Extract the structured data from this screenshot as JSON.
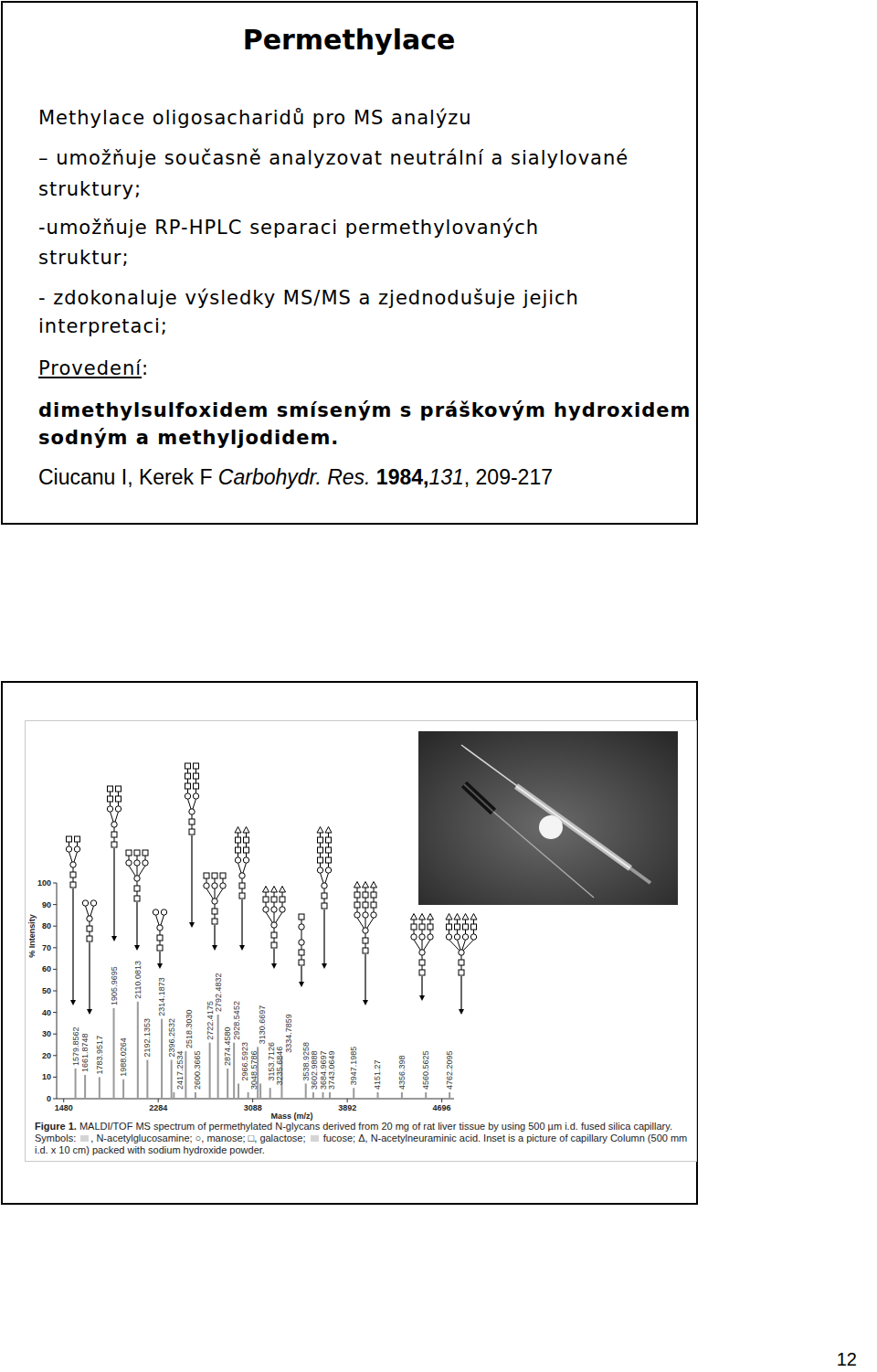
{
  "slide": {
    "title": "Permethylace",
    "items": [
      {
        "lines": [
          "Methylace oligosacharidů pro MS analýzu"
        ]
      },
      {
        "lines": [
          "– umožňuje současně analyzovat neutrální a sialylované",
          "struktury;"
        ]
      },
      {
        "lines": [
          "-umožňuje RP-HPLC separaci permethylovaných",
          "struktur;"
        ]
      },
      {
        "lines": [
          "- zdokonaluje výsledky MS/MS a zjednodušuje jejich",
          "interpretaci;"
        ]
      },
      {
        "parts": [
          {
            "text": "Provedení",
            "style": "underline"
          },
          {
            "text": ":",
            "style": "normal"
          }
        ]
      },
      {
        "lines": [
          "dimethylsulfoxidem smíseným s práškovým hydroxidem",
          "sodným a methyljodidem."
        ],
        "style": "bold"
      }
    ],
    "citation": [
      {
        "text": "Ciucanu I, Kerek F ",
        "style": "normal"
      },
      {
        "text": "Carbohydr. Res.",
        "style": "italic"
      },
      {
        "text": " ",
        "style": "normal"
      },
      {
        "text": "1984",
        "style": "bold"
      },
      {
        "text": ",",
        "style": "bold"
      },
      {
        "text": "131",
        "style": "italic"
      },
      {
        "text": ", 209-217",
        "style": "normal"
      }
    ]
  },
  "chart_data": {
    "type": "bar",
    "xlabel": "Mass (m/z)",
    "ylabel": "% Intensity",
    "x": [
      1579.8562,
      1661.8748,
      1783.9517,
      1905.9695,
      1988.0264,
      2110.0813,
      2192.1353,
      2314.1873,
      2396.2532,
      2417.2534,
      2518.303,
      2600.3665,
      2722.4175,
      2792.4832,
      2874.458,
      2928.5452,
      2966.5923,
      3048.5786,
      3130.6697,
      3153.7126,
      3235.6846,
      3334.7859,
      3538.9258,
      3602.9888,
      3684.9697,
      3743.0649,
      3947.1985,
      4151.27,
      4356.398,
      4560.5625,
      4762.2095
    ],
    "values": [
      14,
      11,
      10,
      42,
      9,
      45,
      18,
      37,
      18,
      3,
      22,
      3,
      26,
      39,
      14,
      26,
      7,
      3,
      24,
      7,
      5,
      20,
      7,
      3,
      3,
      3,
      5,
      3,
      3,
      3,
      3
    ],
    "peak_labels": [
      "1579.8562",
      "1661.8748",
      "1783.9517",
      "1905.9695",
      "1988.0264",
      "2110.0813",
      "2192.1353",
      "2314.1873",
      "2396.2532",
      "2417.2534",
      "2518.3030",
      "2600.3665",
      "2722.4175",
      "2792.4832",
      "2874.4580",
      "2928.5452",
      "2966.5923",
      "3048.5786",
      "3130.6697",
      "3153.7126",
      "3235.6846",
      "3334.7859",
      "3538.9258",
      "3602.9888",
      "3684.9697",
      "3743.0649",
      "3947.1985",
      "4151.27",
      "4356.398",
      "4560.5625",
      "4762.2095"
    ],
    "color": "#9a9a9a",
    "xlim": [
      1420,
      4800
    ],
    "ylim": [
      0,
      100
    ],
    "xticks": [
      1480,
      2284,
      3088,
      3892,
      4696
    ],
    "yticks": [
      0,
      10,
      20,
      30,
      40,
      50,
      60,
      70,
      80,
      90,
      100
    ],
    "grid": false
  },
  "caption": {
    "label": "Figure 1.",
    "parts": [
      " MALDI/TOF MS spectrum of permethylated N-glycans derived from 20 mg of rat liver tissue by using 500 µm i.d. fused silica capillary. Symbols: ",
      ", N-acetylglucosamine; ○, manose; □, galactose; ",
      " fucose; Δ, N-acetylneuraminic acid. Inset is a picture of capillary Column (500 mm i.d. x 10 cm) packed with sodium hydroxide powder."
    ]
  },
  "page_number": "12"
}
